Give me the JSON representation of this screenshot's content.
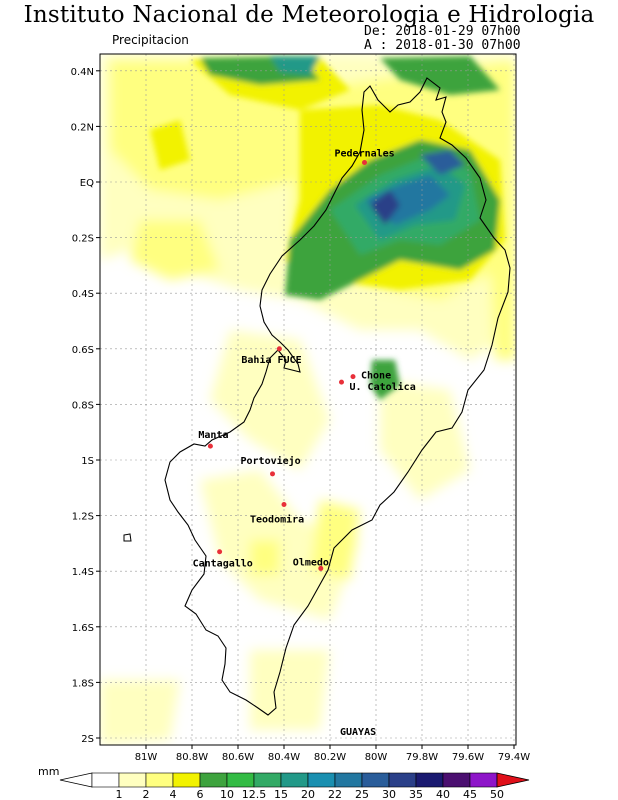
{
  "header": {
    "title": "Instituto Nacional de Meteorologia e Hidrologia",
    "subtitle": "Precipitacion",
    "date_from": "De: 2018-01-29 07h00",
    "date_to": "A : 2018-01-30 07h00"
  },
  "axes": {
    "lat_labels": [
      "0.4N",
      "0.2N",
      "EQ",
      "0.2S",
      "0.4S",
      "0.6S",
      "0.8S",
      "1S",
      "1.2S",
      "1.4S",
      "1.6S",
      "1.8S",
      "2S"
    ],
    "lon_labels": [
      "81W",
      "80.8W",
      "80.6W",
      "80.4W",
      "80.2W",
      "80W",
      "79.8W",
      "79.6W",
      "79.4W"
    ]
  },
  "cities": [
    {
      "name": "Pedernales",
      "lon": -80.05,
      "lat": 0.07
    },
    {
      "name": "Chone",
      "lon": -80.1,
      "lat": -0.7
    },
    {
      "name": "U. Catolica",
      "lon": -80.15,
      "lat": -0.72
    },
    {
      "name": "Bahia FUCE",
      "lon": -80.42,
      "lat": -0.6
    },
    {
      "name": "Manta",
      "lon": -80.72,
      "lat": -0.95
    },
    {
      "name": "Portoviejo",
      "lon": -80.45,
      "lat": -1.05
    },
    {
      "name": "Teodomira",
      "lon": -80.4,
      "lat": -1.16
    },
    {
      "name": "Cantagallo",
      "lon": -80.68,
      "lat": -1.33
    },
    {
      "name": "Olmedo",
      "lon": -80.24,
      "lat": -1.39
    }
  ],
  "region_label": "GUAYAS",
  "legend": {
    "unit": "mm",
    "values": [
      "1",
      "2",
      "4",
      "6",
      "10",
      "12.5",
      "15",
      "20",
      "22",
      "25",
      "30",
      "35",
      "40",
      "45",
      "50"
    ],
    "colors": [
      "#ffffff",
      "#ffffc0",
      "#ffff80",
      "#f2f200",
      "#3ea33e",
      "#33bb44",
      "#33aa66",
      "#229988",
      "#1a8fb0",
      "#2277a0",
      "#2a5d9a",
      "#2a3f88",
      "#1a1a70",
      "#4b0f70",
      "#8e15c9",
      "#e0101a"
    ]
  },
  "colors": {
    "coast": "#000000",
    "city_marker": "#e8303a",
    "grid": "#999999"
  }
}
